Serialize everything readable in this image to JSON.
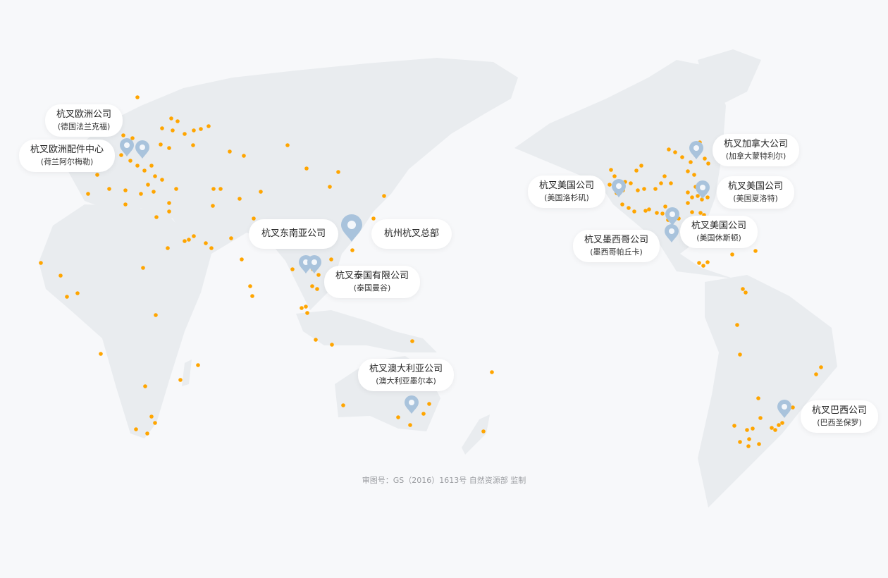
{
  "colors": {
    "background": "#f7f8fa",
    "land": "#e9ecef",
    "dot": "#ffa500",
    "pin": "#a9c3dc"
  },
  "offices": [
    {
      "title": "杭叉欧洲公司",
      "subtitle": "(德国法兰克福)"
    },
    {
      "title": "杭叉欧洲配件中心",
      "subtitle": "(荷兰阿尔梅勒)"
    },
    {
      "title": "杭叉东南亚公司"
    },
    {
      "title": "杭州杭叉总部"
    },
    {
      "title": "杭叉泰国有限公司",
      "subtitle": "(泰国曼谷)"
    },
    {
      "title": "杭叉澳大利亚公司",
      "subtitle": "(澳大利亚墨尔本)"
    },
    {
      "title": "杭叉加拿大公司",
      "subtitle": "(加拿大蒙特利尔)"
    },
    {
      "title": "杭叉美国公司",
      "subtitle": "(美国洛杉矶)"
    },
    {
      "title": "杭叉美国公司",
      "subtitle": "(美国夏洛特)"
    },
    {
      "title": "杭叉美国公司",
      "subtitle": "(美国休斯顿)"
    },
    {
      "title": "杭叉墨西哥公司",
      "subtitle": "(墨西哥帕丘卡)"
    },
    {
      "title": "杭叉巴西公司",
      "subtitle": "(巴西圣保罗)"
    }
  ],
  "footer": "审图号：GS（2016）1613号 自然资源部 监制"
}
